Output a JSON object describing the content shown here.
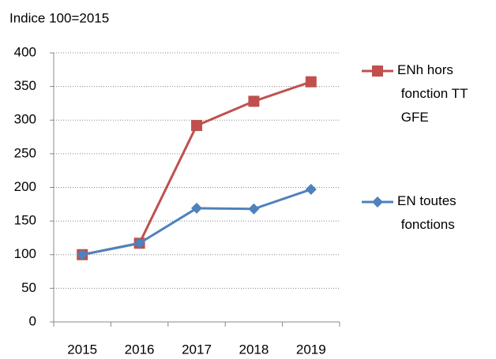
{
  "chart_data": {
    "type": "line",
    "title": "Indice 100=2015",
    "categories": [
      "2015",
      "2016",
      "2017",
      "2018",
      "2019"
    ],
    "series": [
      {
        "name": "ENh hors fonction TT GFE",
        "color": "#c0504d",
        "marker": "square",
        "values": [
          100,
          117,
          292,
          328,
          357
        ]
      },
      {
        "name": "EN toutes fonctions",
        "color": "#4f81bd",
        "marker": "diamond",
        "values": [
          100,
          117,
          169,
          168,
          197
        ]
      }
    ],
    "ylim": [
      0,
      400
    ],
    "yticks": [
      0,
      50,
      100,
      150,
      200,
      250,
      300,
      350,
      400
    ],
    "grid": true,
    "legend": "right"
  }
}
